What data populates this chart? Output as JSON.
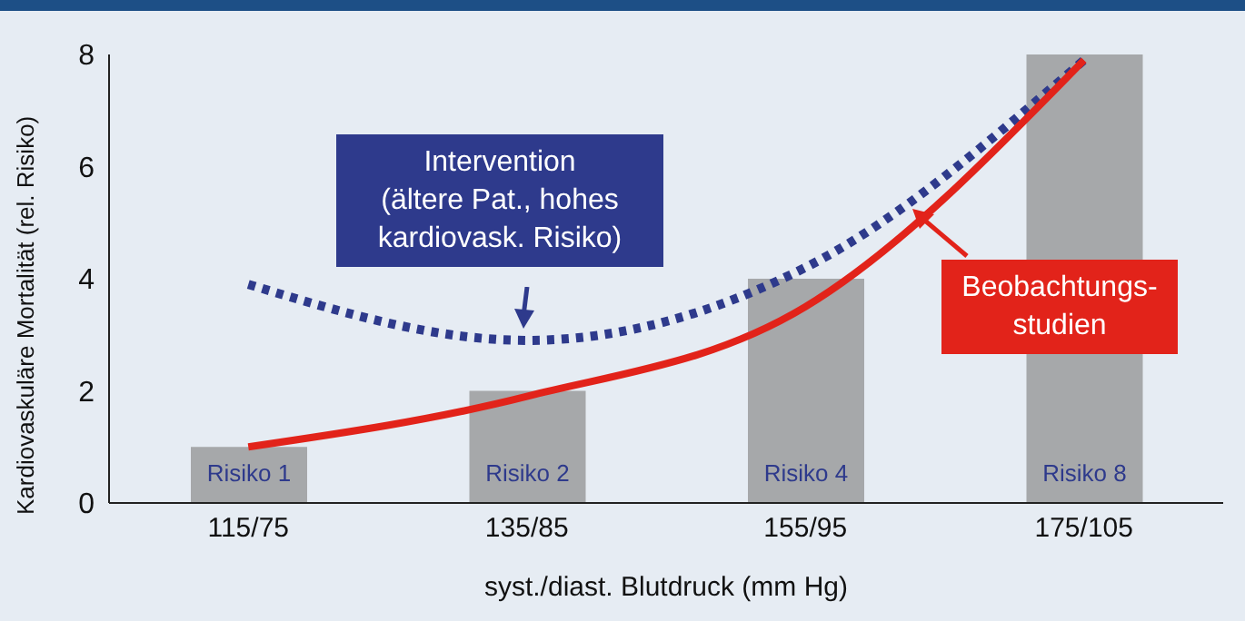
{
  "chart_data": {
    "type": "bar",
    "xlabel": "syst./diast. Blutdruck (mm Hg)",
    "ylabel": "Kardiovaskuläre Mortalität (rel. Risiko)",
    "categories": [
      "115/75",
      "135/85",
      "155/95",
      "175/105"
    ],
    "ylim": [
      0,
      8
    ],
    "yticks": [
      0,
      2,
      4,
      6,
      8
    ],
    "grid": false,
    "legend": "right",
    "series": [
      {
        "color": "#a6a8aa",
        "values": [
          1,
          2,
          4,
          8
        ],
        "value_labels": [
          "Risiko 1",
          "Risiko 2",
          "Risiko 4",
          "Risiko 8"
        ]
      },
      {
        "type": "line",
        "name": "Intervention\n(ältere Pat., hohes\nkardiovask. Risiko)",
        "color": "#2e3a8c",
        "line_style": "dotted",
        "marker": "none",
        "values": [
          3.9,
          2.9,
          4.2,
          7.9
        ]
      },
      {
        "type": "line",
        "name": "Beobachtungs-\nstudien",
        "color": "#e2231a",
        "line_style": "solid",
        "marker": "none",
        "values": [
          1,
          1.9,
          3.5,
          7.9
        ]
      }
    ]
  }
}
